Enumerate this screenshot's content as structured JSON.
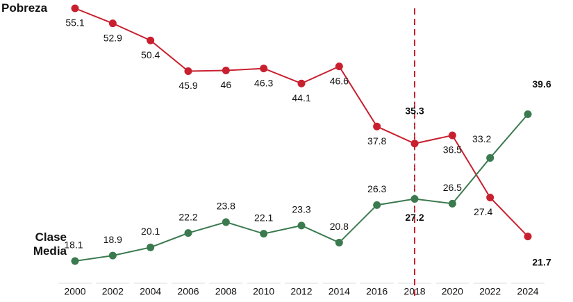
{
  "chart_data": {
    "type": "line",
    "categories": [
      "2000",
      "2002",
      "2004",
      "2006",
      "2008",
      "2010",
      "2012",
      "2014",
      "2016",
      "2018",
      "2020",
      "2022",
      "2024"
    ],
    "series": [
      {
        "name": "Pobreza",
        "color": "#c8202f",
        "values": [
          55.1,
          52.9,
          50.4,
          45.9,
          46,
          46.3,
          44.1,
          46.6,
          37.8,
          35.3,
          36.5,
          27.4,
          21.7
        ]
      },
      {
        "name": "Clase Media",
        "color": "#3b7a4f",
        "values": [
          18.1,
          18.9,
          20.1,
          22.2,
          23.8,
          22.1,
          23.3,
          20.8,
          26.3,
          27.2,
          26.5,
          33.2,
          39.6
        ]
      }
    ],
    "highlight_category": "2018"
  }
}
